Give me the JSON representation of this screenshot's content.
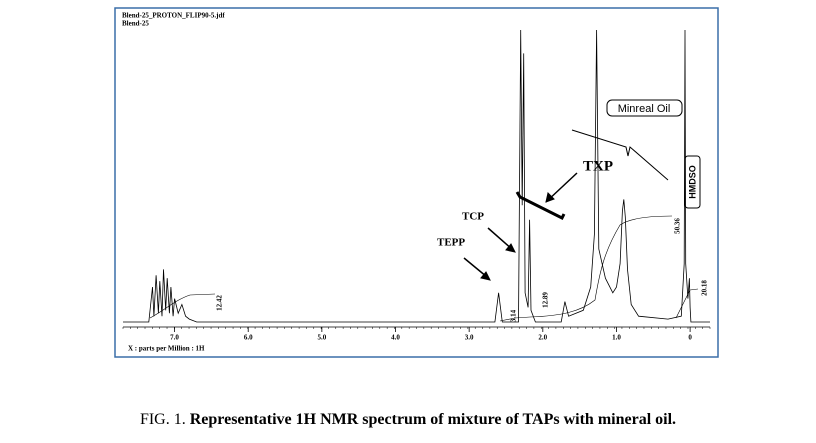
{
  "chart_data": {
    "type": "line",
    "file_label": "Blend-25_PROTON_FLIP90-5.jdf",
    "sample_label": "Blend-25",
    "x_label": "X : parts per Million : 1H",
    "xlim": [
      7.7,
      -0.27
    ],
    "ylim": [
      0,
      100
    ],
    "xticks": [
      {
        "value": 7,
        "label": "7.0"
      },
      {
        "value": 6,
        "label": "6.0"
      },
      {
        "value": 5,
        "label": "5.0"
      },
      {
        "value": 4,
        "label": "4.0"
      },
      {
        "value": 3,
        "label": "3.0"
      },
      {
        "value": 2,
        "label": "2.0"
      },
      {
        "value": 1,
        "label": "1.0"
      },
      0
    ],
    "color": "#000000",
    "x": [
      7.7,
      7.35,
      7.3,
      7.28,
      7.25,
      7.22,
      7.2,
      7.17,
      7.15,
      7.12,
      7.1,
      7.07,
      7.05,
      7.02,
      7.0,
      6.95,
      6.9,
      6.85,
      6.8,
      6.7,
      2.65,
      2.6,
      2.55,
      2.33,
      2.3,
      2.28,
      2.26,
      2.24,
      2.2,
      2.18,
      2.16,
      2.1,
      1.75,
      1.7,
      1.65,
      1.45,
      1.35,
      1.3,
      1.27,
      1.24,
      1.15,
      1.05,
      1.0,
      0.95,
      0.92,
      0.9,
      0.88,
      0.85,
      0.8,
      0.7,
      0.3,
      0.12,
      0.08,
      0.07,
      0.06,
      0.03,
      0.01,
      0,
      -0.01,
      -0.05,
      -0.27
    ],
    "values": [
      0,
      0,
      12,
      2,
      16,
      3,
      14,
      2,
      18,
      4,
      15,
      3,
      12,
      2,
      8,
      3,
      6,
      2,
      1,
      0,
      0,
      10,
      0,
      0,
      100,
      40,
      92,
      10,
      5,
      35,
      4,
      0,
      0,
      7,
      2,
      4,
      12,
      30,
      100,
      25,
      15,
      10,
      12,
      20,
      38,
      42,
      36,
      18,
      6,
      2,
      1,
      2,
      20,
      100,
      20,
      8,
      15,
      5,
      0,
      0,
      0
    ],
    "integrals": [
      12.42,
      3.14,
      12.89,
      50.36,
      20.18
    ],
    "annotations": [
      "TXP",
      "TCP",
      "TEPP",
      "Minreal Oil",
      "HMDSO"
    ]
  },
  "caption": {
    "prefix": "FIG. 1.",
    "text": "Representative 1H NMR spectrum of mixture of TAPs with mineral oil."
  }
}
